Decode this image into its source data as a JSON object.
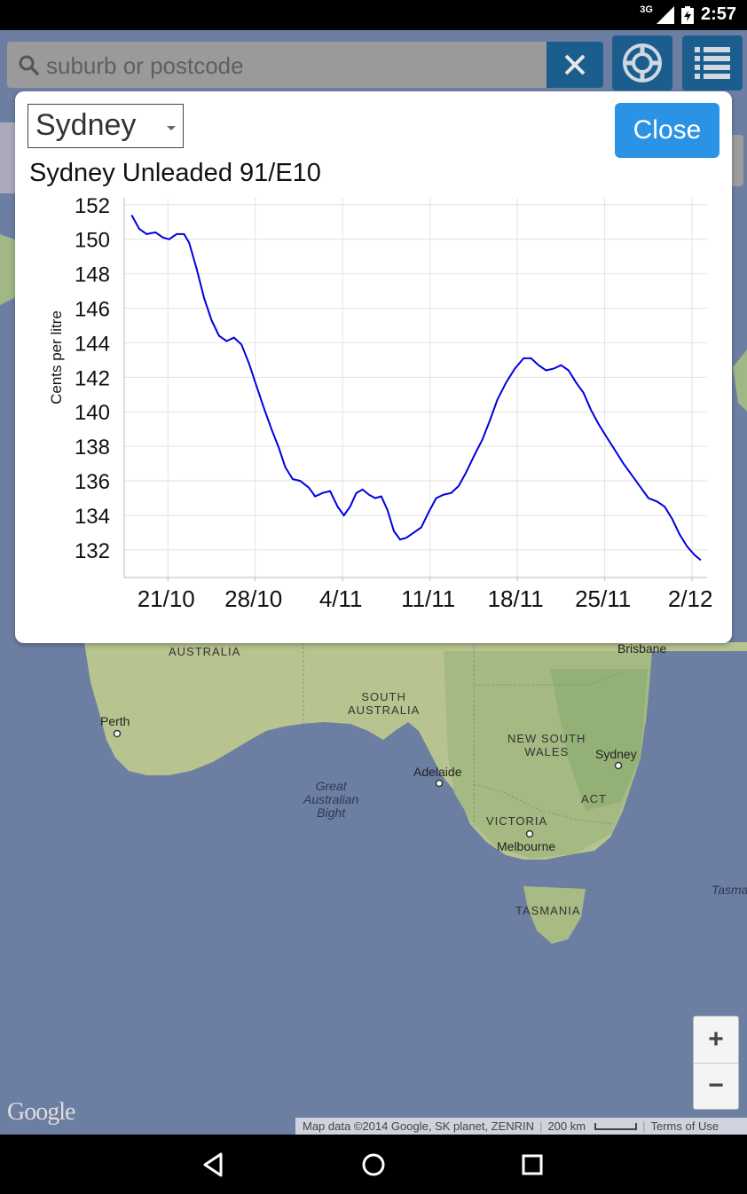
{
  "status_bar": {
    "network": "3G",
    "time": "2:57"
  },
  "search": {
    "placeholder": "suburb or postcode",
    "value": ""
  },
  "dialog": {
    "selected_city": "Sydney",
    "close_label": "Close",
    "chart_title": "Sydney Unleaded 91/E10"
  },
  "chart_data": {
    "type": "line",
    "title": "Sydney Unleaded 91/E10",
    "ylabel": "Cents per litre",
    "xlabel": "",
    "ylim": [
      130.4,
      152.4
    ],
    "y_ticks": [
      152,
      150,
      148,
      146,
      144,
      142,
      140,
      138,
      136,
      134,
      132
    ],
    "x_tick_labels": [
      "21/10",
      "28/10",
      "4/11",
      "11/11",
      "18/11",
      "25/11",
      "2/12"
    ],
    "grid": true,
    "series": [
      {
        "color": "#0000dd",
        "points": [
          [
            -2.9,
            151.4
          ],
          [
            -2.3,
            150.6
          ],
          [
            -1.7,
            150.3
          ],
          [
            -1.0,
            150.4
          ],
          [
            -0.4,
            150.1
          ],
          [
            0.1,
            150.0
          ],
          [
            0.7,
            150.3
          ],
          [
            1.3,
            150.3
          ],
          [
            1.7,
            149.8
          ],
          [
            2.3,
            148.3
          ],
          [
            2.9,
            146.6
          ],
          [
            3.5,
            145.3
          ],
          [
            4.1,
            144.4
          ],
          [
            4.7,
            144.1
          ],
          [
            5.3,
            144.3
          ],
          [
            5.9,
            143.9
          ],
          [
            6.5,
            142.8
          ],
          [
            7.1,
            141.5
          ],
          [
            7.7,
            140.2
          ],
          [
            8.3,
            139.0
          ],
          [
            8.9,
            137.9
          ],
          [
            9.4,
            136.8
          ],
          [
            10.0,
            136.1
          ],
          [
            10.6,
            136.0
          ],
          [
            11.3,
            135.6
          ],
          [
            11.8,
            135.1
          ],
          [
            12.4,
            135.3
          ],
          [
            13.0,
            135.4
          ],
          [
            13.6,
            134.5
          ],
          [
            14.1,
            134.0
          ],
          [
            14.6,
            134.5
          ],
          [
            15.1,
            135.3
          ],
          [
            15.6,
            135.5
          ],
          [
            16.1,
            135.2
          ],
          [
            16.6,
            135.0
          ],
          [
            17.1,
            135.1
          ],
          [
            17.6,
            134.3
          ],
          [
            18.1,
            133.1
          ],
          [
            18.6,
            132.6
          ],
          [
            19.1,
            132.7
          ],
          [
            19.7,
            133.0
          ],
          [
            20.3,
            133.3
          ],
          [
            20.9,
            134.2
          ],
          [
            21.5,
            135.0
          ],
          [
            22.1,
            135.2
          ],
          [
            22.7,
            135.3
          ],
          [
            23.3,
            135.7
          ],
          [
            23.9,
            136.5
          ],
          [
            24.5,
            137.4
          ],
          [
            25.2,
            138.4
          ],
          [
            25.8,
            139.5
          ],
          [
            26.4,
            140.7
          ],
          [
            27.1,
            141.7
          ],
          [
            27.8,
            142.5
          ],
          [
            28.5,
            143.1
          ],
          [
            29.1,
            143.1
          ],
          [
            29.7,
            142.7
          ],
          [
            30.3,
            142.4
          ],
          [
            30.9,
            142.5
          ],
          [
            31.5,
            142.7
          ],
          [
            32.1,
            142.4
          ],
          [
            32.7,
            141.7
          ],
          [
            33.3,
            141.1
          ],
          [
            33.9,
            140.1
          ],
          [
            34.5,
            139.3
          ],
          [
            35.1,
            138.6
          ],
          [
            35.8,
            137.8
          ],
          [
            36.5,
            137.0
          ],
          [
            37.2,
            136.3
          ],
          [
            37.9,
            135.6
          ],
          [
            38.5,
            135.0
          ],
          [
            39.2,
            134.8
          ],
          [
            39.8,
            134.5
          ],
          [
            40.4,
            133.8
          ],
          [
            41.0,
            132.9
          ],
          [
            41.6,
            132.2
          ],
          [
            42.2,
            131.7
          ],
          [
            42.7,
            131.4
          ]
        ]
      }
    ]
  },
  "map": {
    "labels": {
      "western_australia": "AUSTRALIA",
      "south_australia": "SOUTH\nAUSTRALIA",
      "nsw": "NEW SOUTH\nWALES",
      "victoria": "VICTORIA",
      "tasmania": "TASMANIA",
      "act": "ACT",
      "bight": "Great\nAustralian\nBight",
      "tasman": "Tasma",
      "perth": "Perth",
      "adelaide": "Adelaide",
      "melbourne": "Melbourne",
      "sydney": "Sydney",
      "brisbane": "Brisbane"
    },
    "zoom_in": "+",
    "zoom_out": "−",
    "google_logo": "Google",
    "attribution": "Map data ©2014 Google, SK planet, ZENRIN",
    "scale": "200 km",
    "terms": "Terms of Use"
  }
}
